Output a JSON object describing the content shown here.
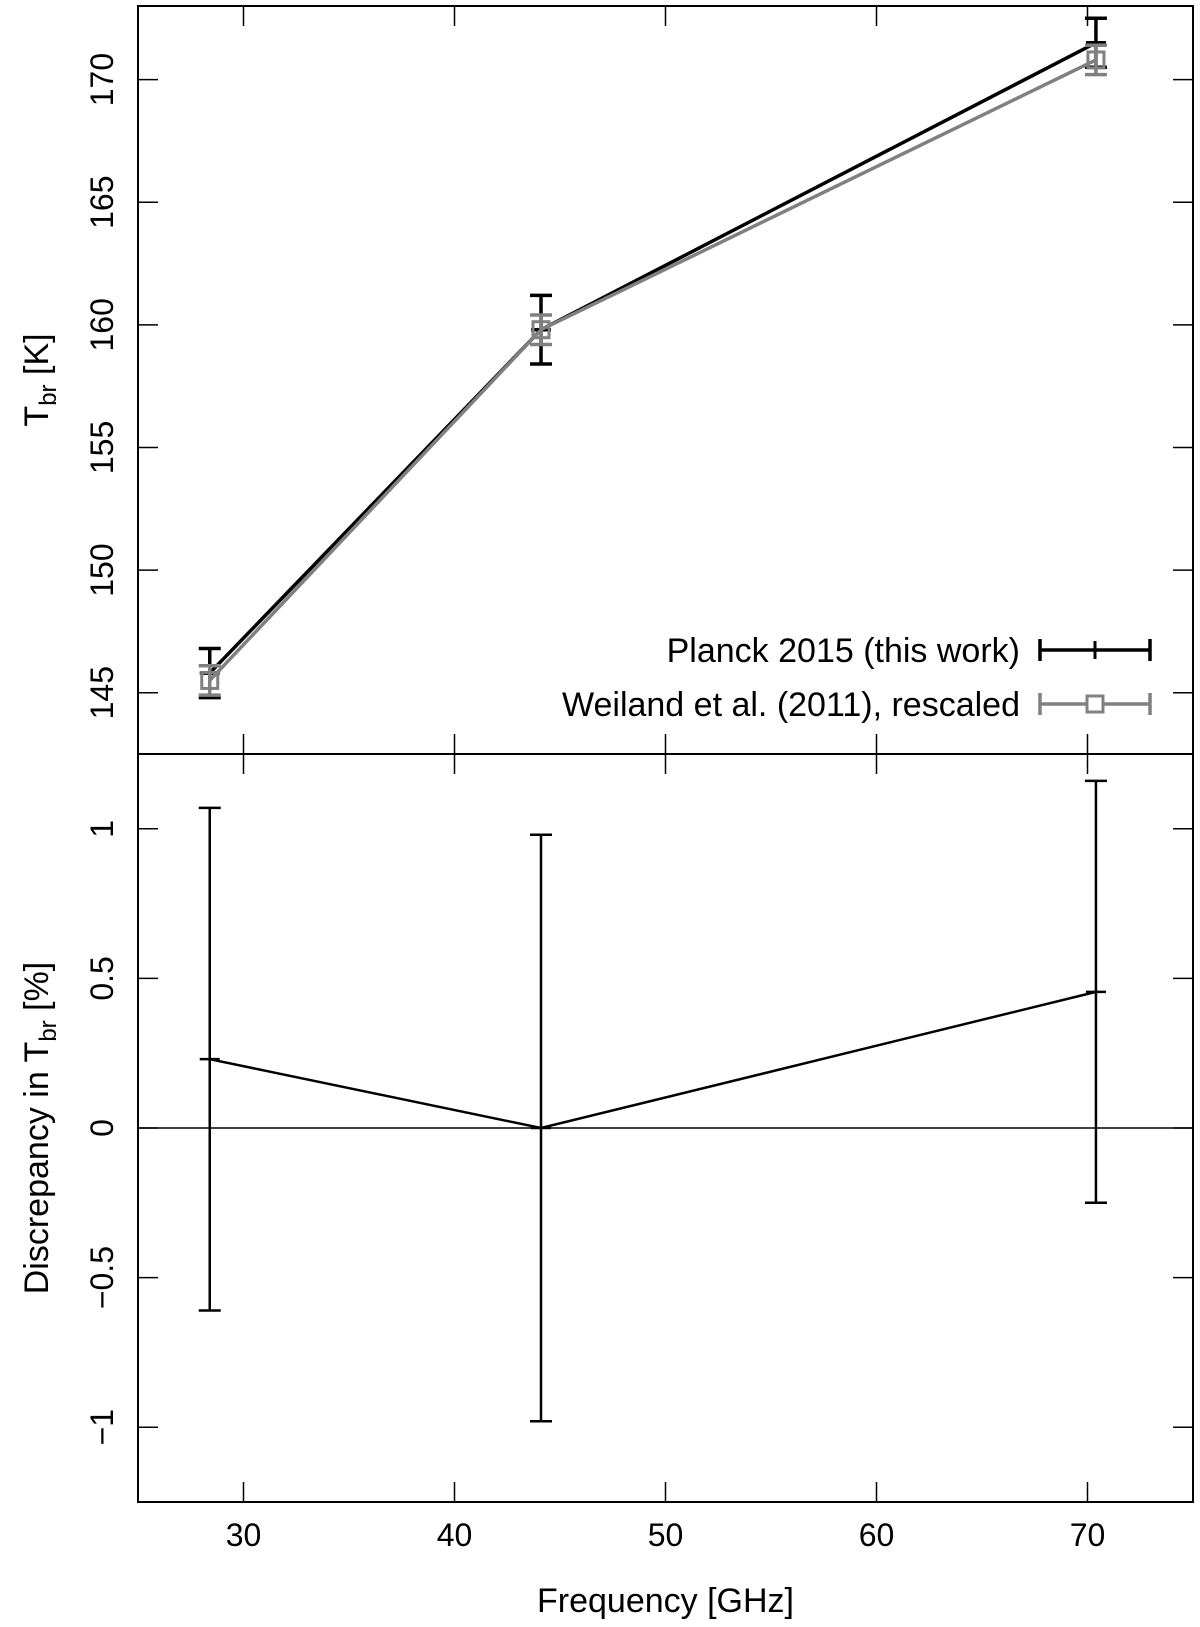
{
  "chart_data": [
    {
      "type": "line",
      "panel": "top",
      "ylabel_main": "T",
      "ylabel_sub": "br",
      "ylabel_unit": "[K]",
      "ylim": [
        142.5,
        173
      ],
      "yticks": [
        145,
        150,
        155,
        160,
        165,
        170
      ],
      "ytick_labels": [
        "145",
        "150",
        "155",
        "160",
        "165",
        "170"
      ],
      "legend_position": "bottom-right",
      "series": [
        {
          "name": "Planck 2015 (this work)",
          "color": "#000000",
          "marker": "plus",
          "x": [
            28.4,
            44.1,
            70.4
          ],
          "y": [
            145.8,
            159.8,
            171.5
          ],
          "err": [
            1.0,
            1.4,
            1.0
          ]
        },
        {
          "name": "Weiland et al. (2011), rescaled",
          "color": "#808080",
          "marker": "square",
          "x": [
            28.4,
            44.1,
            70.4
          ],
          "y": [
            145.5,
            159.8,
            170.8
          ],
          "err": [
            0.6,
            0.6,
            0.6
          ]
        }
      ]
    },
    {
      "type": "line",
      "panel": "bottom",
      "ylabel_main": "Discrepancy in T",
      "ylabel_sub": "br",
      "ylabel_unit": "[%]",
      "ylim": [
        -1.25,
        1.25
      ],
      "yticks": [
        -1,
        -0.5,
        0,
        0.5,
        1
      ],
      "ytick_labels": [
        "−1",
        "−0.5",
        "0",
        "0.5",
        "1"
      ],
      "zero_line": true,
      "series": [
        {
          "color": "#000000",
          "marker": "plus",
          "x": [
            28.4,
            44.1,
            70.4
          ],
          "y": [
            0.23,
            0.0,
            0.455
          ],
          "err": [
            0.84,
            0.98,
            0.705
          ]
        }
      ]
    }
  ],
  "x_axis": {
    "label": "Frequency [GHz]",
    "xlim": [
      25,
      75
    ],
    "ticks": [
      30,
      40,
      50,
      60,
      70
    ],
    "tick_labels": [
      "30",
      "40",
      "50",
      "60",
      "70"
    ]
  }
}
